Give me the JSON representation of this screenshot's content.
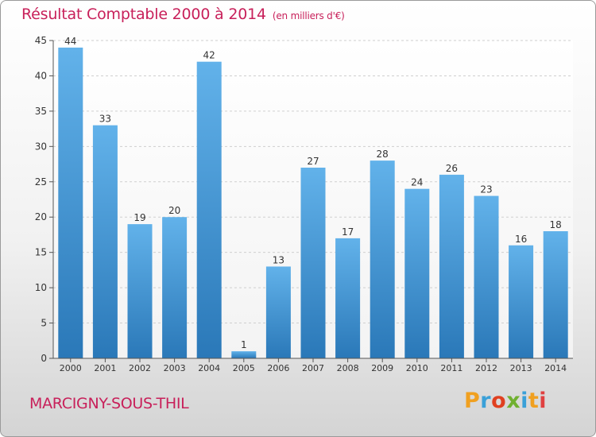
{
  "header": {
    "title": "Résultat Comptable 2000 à 2014",
    "unit": "(en milliers d'€)"
  },
  "footer": {
    "commune": "MARCIGNY-SOUS-THIL",
    "logo_text": "Proxiti"
  },
  "colors": {
    "title": "#c8205a",
    "bar_top": "#62b2ea",
    "bar_bottom": "#2a78b8",
    "logo": [
      "#f0a020",
      "#3aa0d8",
      "#e04020",
      "#70b030",
      "#3aa0d8",
      "#f0a020",
      "#e04040"
    ]
  },
  "chart_data": {
    "type": "bar",
    "title": "Résultat Comptable 2000 à 2014",
    "subtitle": "(en milliers d'€)",
    "categories": [
      "2000",
      "2001",
      "2002",
      "2003",
      "2004",
      "2005",
      "2006",
      "2007",
      "2008",
      "2009",
      "2010",
      "2011",
      "2012",
      "2013",
      "2014"
    ],
    "values": [
      44,
      33,
      19,
      20,
      42,
      1,
      13,
      27,
      17,
      28,
      24,
      26,
      23,
      16,
      18
    ],
    "ylim": [
      0,
      45
    ],
    "yticks": [
      0,
      5,
      10,
      15,
      20,
      25,
      30,
      35,
      40,
      45
    ],
    "grid": true,
    "data_labels": true
  }
}
